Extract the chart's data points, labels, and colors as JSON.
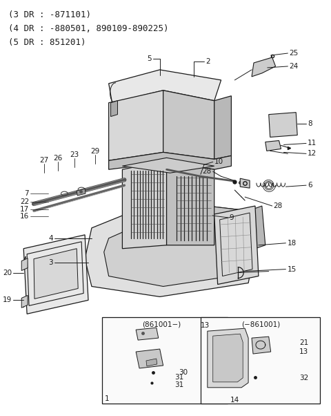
{
  "title_lines": [
    "(3 DR : -871101)",
    "(4 DR : -880501, 890109-890225)",
    "(5 DR : 851201)"
  ],
  "bg_color": "#ffffff",
  "line_color": "#1a1a1a",
  "text_color": "#1a1a1a",
  "label_fontsize": 7.5,
  "title_fontsize": 9.0,
  "fig_width": 4.8,
  "fig_height": 6.02,
  "dpi": 100
}
